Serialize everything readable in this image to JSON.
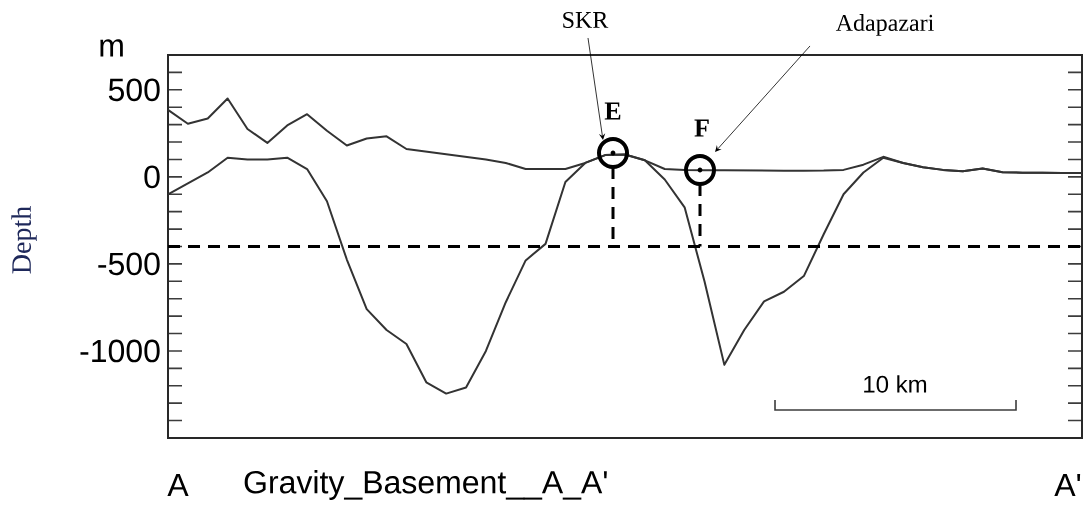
{
  "chart_data": {
    "type": "line",
    "xlabel": "Gravity_Basement__A_A'",
    "ylabel": "Depth",
    "categories": [
      null,
      null,
      null,
      null,
      null,
      null,
      null,
      null,
      null,
      null,
      null,
      null,
      null,
      null,
      null,
      null,
      null,
      null,
      null,
      null,
      null,
      null,
      null,
      null,
      null,
      null,
      null,
      null,
      null,
      null,
      null,
      null,
      null,
      null,
      null,
      null,
      null,
      null,
      null,
      null,
      null,
      null,
      null,
      null,
      null,
      null,
      null
    ],
    "series": [
      {
        "color": "#333333",
        "values": [
          385,
          305,
          335,
          450,
          275,
          195,
          295,
          360,
          265,
          180,
          220,
          233,
          160,
          145,
          130,
          115,
          100,
          80,
          45,
          45,
          45,
          80,
          125,
          128,
          95,
          45,
          40,
          38,
          38,
          37,
          36,
          35,
          35,
          36,
          40,
          70,
          115,
          80,
          55,
          40,
          32,
          48,
          26,
          24,
          23,
          22,
          22
        ]
      },
      {
        "color": "#333333",
        "values": [
          -101,
          -38,
          25,
          110,
          100,
          100,
          110,
          45,
          -140,
          -475,
          -760,
          -880,
          -960,
          -1180,
          -1245,
          -1210,
          -1000,
          -720,
          -480,
          -385,
          -30,
          80,
          125,
          128,
          95,
          -15,
          -175,
          -600,
          -1080,
          -880,
          -715,
          -660,
          -570,
          -330,
          -100,
          25,
          110,
          80,
          55,
          40,
          32,
          48,
          26,
          24,
          23,
          22,
          22
        ]
      }
    ],
    "marker": "none",
    "line_style": "solid",
    "ylim": [
      -1500,
      700
    ],
    "yticks": [
      {
        "value": -1400,
        "label": null
      },
      {
        "value": -1300,
        "label": null
      },
      {
        "value": -1200,
        "label": null
      },
      {
        "value": -1100,
        "label": null
      },
      -1000,
      {
        "value": -900,
        "label": null
      },
      {
        "value": -800,
        "label": null
      },
      {
        "value": -700,
        "label": null
      },
      {
        "value": -600,
        "label": null
      },
      -500,
      {
        "value": -400,
        "label": null
      },
      {
        "value": -300,
        "label": null
      },
      {
        "value": -200,
        "label": null
      },
      {
        "value": -100,
        "label": null
      },
      0,
      {
        "value": 100,
        "label": null
      },
      {
        "value": 200,
        "label": null
      },
      {
        "value": 300,
        "label": null
      },
      {
        "value": 400,
        "label": null
      },
      500,
      {
        "value": 600,
        "label": null
      }
    ],
    "tick_labels": "y",
    "ref_lines": [
      {
        "axis": "y",
        "value": -400,
        "color": "#000000",
        "line_style": "dashed"
      }
    ],
    "annotations": [
      "m",
      "A",
      "A'",
      "10 km",
      "SKR",
      "Adapazari",
      "E",
      "F"
    ]
  }
}
